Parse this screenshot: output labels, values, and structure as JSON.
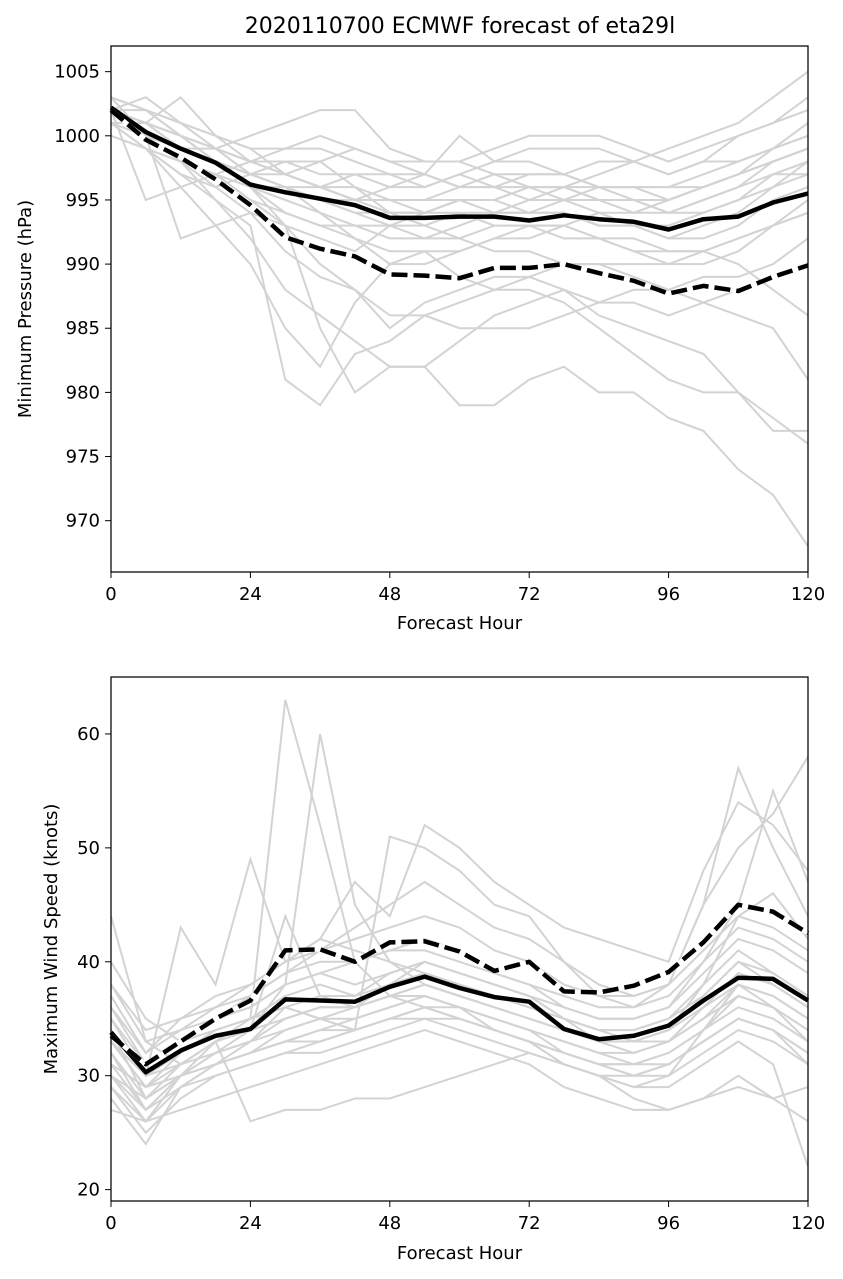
{
  "title": "2020110700 ECMWF forecast of eta29l",
  "chart_data": [
    {
      "type": "line",
      "xlabel": "Forecast Hour",
      "ylabel": "Minimum Pressure (hPa)",
      "xlim": [
        0,
        120
      ],
      "ylim": [
        966,
        1007
      ],
      "xticks": [
        0,
        24,
        48,
        72,
        96,
        120
      ],
      "yticks": [
        970,
        975,
        980,
        985,
        990,
        995,
        1000,
        1005
      ],
      "x": [
        0,
        6,
        12,
        18,
        24,
        30,
        36,
        42,
        48,
        54,
        60,
        66,
        72,
        78,
        84,
        90,
        96,
        102,
        108,
        114,
        120
      ],
      "series": [
        {
          "style": "solid",
          "values": [
            1002.2,
            1000.3,
            999.0,
            997.9,
            996.2,
            995.6,
            995.1,
            994.6,
            993.6,
            993.6,
            993.7,
            993.7,
            993.4,
            993.8,
            993.5,
            993.3,
            992.7,
            993.5,
            993.7,
            994.8,
            995.5
          ]
        },
        {
          "style": "dashed",
          "values": [
            1002.0,
            999.7,
            998.3,
            996.6,
            994.6,
            992.1,
            991.2,
            990.6,
            989.2,
            989.1,
            988.9,
            989.7,
            989.7,
            990.0,
            989.3,
            988.7,
            987.7,
            988.3,
            987.9,
            989.0,
            989.9
          ]
        }
      ],
      "members": [
        [
          1003,
          1002,
          1000,
          998,
          996,
          993,
          985,
          980,
          982,
          982,
          979,
          979,
          981,
          982,
          980,
          980,
          978,
          977,
          974,
          972,
          968
        ],
        [
          1002,
          1003,
          1001,
          999,
          997,
          996,
          994,
          992,
          990,
          990,
          991,
          992,
          993,
          993,
          992,
          992,
          991,
          991,
          990,
          988,
          986
        ],
        [
          1001,
          1000,
          998,
          995,
          992,
          988,
          986,
          984,
          982,
          982,
          984,
          986,
          987,
          988,
          986,
          985,
          984,
          983,
          980,
          978,
          976
        ],
        [
          1002,
          1001,
          1003,
          1000,
          998,
          997,
          998,
          999,
          998,
          997,
          996,
          996,
          997,
          997,
          998,
          998,
          999,
          1000,
          1001,
          1003,
          1005
        ],
        [
          1001,
          999,
          996,
          993,
          990,
          985,
          982,
          987,
          990,
          991,
          989,
          988,
          989,
          990,
          990,
          989,
          988,
          987,
          986,
          985,
          981
        ],
        [
          1000,
          999,
          997,
          995,
          993,
          981,
          979,
          983,
          984,
          986,
          987,
          988,
          988,
          987,
          985,
          983,
          981,
          980,
          980,
          977,
          977
        ],
        [
          1002,
          1000,
          998,
          996,
          994,
          991,
          989,
          988,
          986,
          986,
          985,
          985,
          985,
          986,
          987,
          988,
          988,
          989,
          989,
          990,
          992
        ],
        [
          1001,
          1000,
          992,
          993,
          994,
          993,
          992,
          991,
          993,
          994,
          995,
          994,
          995,
          996,
          995,
          995,
          995,
          996,
          997,
          998,
          999
        ],
        [
          1003,
          1000,
          999,
          999,
          1000,
          1001,
          1002,
          1002,
          999,
          998,
          998,
          999,
          1000,
          1000,
          1000,
          999,
          998,
          999,
          1000,
          1001,
          1002
        ],
        [
          1002,
          995,
          996,
          997,
          998,
          999,
          999,
          998,
          997,
          996,
          997,
          996,
          995,
          995,
          996,
          996,
          995,
          996,
          997,
          998,
          999
        ],
        [
          1001,
          1001,
          1000,
          999,
          997,
          996,
          995,
          994,
          994,
          993,
          992,
          991,
          991,
          990,
          990,
          990,
          990,
          990,
          991,
          993,
          995
        ],
        [
          1002,
          1002,
          1001,
          1000,
          999,
          999,
          1000,
          999,
          998,
          998,
          998,
          997,
          996,
          996,
          997,
          998,
          997,
          998,
          998,
          999,
          1000
        ],
        [
          1001,
          1001,
          999,
          998,
          996,
          995,
          994,
          993,
          992,
          992,
          993,
          994,
          994,
          995,
          994,
          993,
          992,
          992,
          993,
          995,
          996
        ],
        [
          1002,
          1001,
          1000,
          999,
          998,
          998,
          997,
          997,
          996,
          996,
          997,
          998,
          998,
          997,
          996,
          996,
          996,
          997,
          998,
          999,
          1000
        ],
        [
          1003,
          1002,
          1001,
          1000,
          999,
          997,
          996,
          995,
          996,
          997,
          1000,
          998,
          999,
          999,
          999,
          998,
          997,
          998,
          1000,
          1001,
          1003
        ],
        [
          1001,
          999,
          997,
          996,
          997,
          998,
          998,
          996,
          994,
          994,
          995,
          995,
          994,
          994,
          993,
          993,
          993,
          994,
          995,
          997,
          998
        ],
        [
          1002,
          1001,
          1000,
          998,
          996,
          994,
          993,
          992,
          991,
          991,
          991,
          992,
          992,
          993,
          992,
          991,
          991,
          991,
          992,
          993,
          994
        ],
        [
          1000,
          999,
          998,
          997,
          995,
          993,
          990,
          988,
          985,
          987,
          988,
          989,
          989,
          988,
          987,
          987,
          986,
          987,
          988,
          989,
          990
        ],
        [
          1002,
          1000,
          998,
          997,
          996,
          996,
          995,
          995,
          995,
          994,
          995,
          995,
          996,
          996,
          996,
          995,
          994,
          995,
          996,
          997,
          997
        ],
        [
          1001,
          1001,
          1000,
          998,
          997,
          996,
          996,
          997,
          997,
          997,
          996,
          996,
          996,
          995,
          995,
          994,
          994,
          995,
          996,
          998,
          999
        ],
        [
          1002,
          1001,
          999,
          998,
          997,
          996,
          995,
          994,
          993,
          993,
          994,
          994,
          994,
          994,
          993,
          993,
          992,
          993,
          994,
          996,
          997
        ],
        [
          1002,
          1000,
          999,
          998,
          997,
          997,
          996,
          995,
          994,
          994,
          994,
          993,
          993,
          993,
          994,
          994,
          995,
          996,
          997,
          999,
          1001
        ],
        [
          1003,
          1002,
          1000,
          999,
          998,
          997,
          996,
          995,
          995,
          995,
          996,
          997,
          997,
          997,
          996,
          996,
          996,
          996,
          997,
          998,
          999
        ],
        [
          1001,
          1000,
          998,
          997,
          995,
          994,
          993,
          993,
          993,
          992,
          992,
          993,
          993,
          992,
          992,
          991,
          990,
          991,
          992,
          993,
          994
        ],
        [
          1002,
          1001,
          1000,
          999,
          998,
          997,
          996,
          996,
          995,
          995,
          995,
          995,
          996,
          996,
          995,
          995,
          994,
          994,
          995,
          996,
          998
        ]
      ]
    },
    {
      "type": "line",
      "xlabel": "Forecast Hour",
      "ylabel": "Maximum Wind Speed (knots)",
      "xlim": [
        0,
        120
      ],
      "ylim": [
        19,
        65
      ],
      "xticks": [
        0,
        24,
        48,
        72,
        96,
        120
      ],
      "yticks": [
        20,
        30,
        40,
        50,
        60
      ],
      "x": [
        0,
        6,
        12,
        18,
        24,
        30,
        36,
        42,
        48,
        54,
        60,
        66,
        72,
        78,
        84,
        90,
        96,
        102,
        108,
        114,
        120
      ],
      "series": [
        {
          "style": "solid",
          "values": [
            33.8,
            30.3,
            32.2,
            33.5,
            34.1,
            36.7,
            36.6,
            36.5,
            37.8,
            38.7,
            37.7,
            36.9,
            36.5,
            34.1,
            33.2,
            33.5,
            34.4,
            36.6,
            38.6,
            38.5,
            36.6
          ]
        },
        {
          "style": "dashed",
          "values": [
            33.5,
            31.0,
            33.0,
            35.0,
            36.6,
            41.0,
            41.1,
            40.0,
            41.7,
            41.8,
            40.9,
            39.2,
            40.0,
            37.4,
            37.3,
            37.9,
            39.1,
            41.7,
            45.0,
            44.4,
            42.5
          ]
        }
      ],
      "members": [
        [
          44,
          33,
          31,
          33,
          35,
          63,
          52,
          40,
          37,
          36,
          35,
          34,
          33,
          31,
          30,
          29,
          30,
          34,
          38,
          36,
          33
        ],
        [
          30,
          26,
          30,
          32,
          34,
          38,
          60,
          45,
          40,
          38,
          37,
          36,
          35,
          34,
          33,
          33,
          34,
          38,
          41,
          39,
          37
        ],
        [
          28,
          24,
          29,
          31,
          33,
          36,
          35,
          34,
          51,
          50,
          48,
          45,
          44,
          40,
          37,
          36,
          38,
          45,
          57,
          50,
          44
        ],
        [
          35,
          30,
          43,
          38,
          49,
          40,
          42,
          47,
          44,
          52,
          50,
          47,
          45,
          43,
          42,
          41,
          40,
          48,
          54,
          52,
          48
        ],
        [
          32,
          27,
          30,
          33,
          26,
          27,
          27,
          28,
          28,
          29,
          30,
          31,
          32,
          31,
          30,
          28,
          27,
          28,
          29,
          28,
          29
        ],
        [
          40,
          35,
          33,
          35,
          37,
          39,
          41,
          43,
          45,
          47,
          45,
          43,
          42,
          40,
          38,
          37,
          38,
          45,
          50,
          53,
          58
        ],
        [
          31,
          29,
          30,
          31,
          32,
          33,
          34,
          35,
          36,
          37,
          36,
          34,
          33,
          31,
          30,
          29,
          29,
          31,
          33,
          31,
          22
        ],
        [
          36,
          32,
          34,
          36,
          38,
          40,
          42,
          41,
          40,
          39,
          38,
          37,
          36,
          35,
          34,
          34,
          35,
          38,
          44,
          46,
          42
        ],
        [
          29,
          25,
          28,
          30,
          31,
          32,
          32,
          33,
          34,
          35,
          35,
          34,
          33,
          32,
          31,
          30,
          30,
          32,
          34,
          33,
          31
        ],
        [
          34,
          28,
          31,
          33,
          34,
          44,
          37,
          36,
          38,
          40,
          39,
          38,
          37,
          35,
          34,
          33,
          33,
          35,
          38,
          37,
          35
        ],
        [
          38,
          33,
          34,
          35,
          36,
          38,
          39,
          40,
          41,
          42,
          41,
          39,
          38,
          36,
          35,
          35,
          36,
          40,
          45,
          55,
          47
        ],
        [
          27,
          26,
          27,
          28,
          29,
          30,
          31,
          32,
          33,
          34,
          33,
          32,
          31,
          29,
          28,
          27,
          27,
          28,
          30,
          28,
          26
        ],
        [
          33,
          29,
          32,
          34,
          35,
          37,
          38,
          37,
          39,
          40,
          39,
          38,
          37,
          35,
          33,
          33,
          34,
          37,
          40,
          38,
          36
        ],
        [
          35,
          31,
          33,
          34,
          35,
          36,
          35,
          34,
          35,
          36,
          36,
          35,
          34,
          33,
          32,
          32,
          33,
          35,
          37,
          36,
          34
        ],
        [
          30,
          27,
          29,
          30,
          31,
          32,
          33,
          34,
          35,
          36,
          35,
          34,
          33,
          32,
          31,
          31,
          32,
          34,
          36,
          35,
          33
        ],
        [
          37,
          32,
          35,
          37,
          38,
          40,
          41,
          42,
          43,
          44,
          43,
          41,
          40,
          38,
          37,
          37,
          38,
          41,
          44,
          43,
          41
        ],
        [
          32,
          28,
          30,
          31,
          32,
          34,
          35,
          35,
          36,
          37,
          36,
          35,
          34,
          33,
          32,
          31,
          32,
          34,
          37,
          36,
          34
        ],
        [
          36,
          31,
          33,
          35,
          36,
          38,
          39,
          38,
          39,
          40,
          39,
          38,
          37,
          36,
          35,
          35,
          36,
          39,
          42,
          41,
          39
        ],
        [
          33,
          30,
          31,
          32,
          33,
          35,
          36,
          36,
          37,
          38,
          37,
          36,
          35,
          34,
          33,
          32,
          33,
          36,
          39,
          38,
          36
        ],
        [
          31,
          27,
          30,
          32,
          33,
          34,
          35,
          36,
          37,
          37,
          36,
          35,
          34,
          32,
          31,
          31,
          31,
          33,
          35,
          34,
          32
        ],
        [
          34,
          30,
          32,
          34,
          35,
          36,
          37,
          37,
          38,
          39,
          38,
          37,
          36,
          35,
          34,
          34,
          35,
          37,
          40,
          39,
          37
        ],
        [
          29,
          26,
          29,
          31,
          32,
          33,
          34,
          34,
          35,
          36,
          35,
          34,
          33,
          32,
          31,
          30,
          31,
          33,
          35,
          34,
          32
        ],
        [
          38,
          34,
          35,
          36,
          37,
          39,
          40,
          40,
          41,
          41,
          40,
          39,
          38,
          37,
          36,
          36,
          37,
          40,
          43,
          42,
          40
        ],
        [
          33,
          29,
          31,
          33,
          34,
          35,
          36,
          36,
          37,
          38,
          37,
          36,
          35,
          34,
          33,
          33,
          34,
          36,
          38,
          37,
          35
        ],
        [
          30,
          28,
          30,
          31,
          32,
          33,
          33,
          34,
          35,
          35,
          34,
          33,
          32,
          31,
          30,
          30,
          31,
          33,
          35,
          34,
          31
        ]
      ]
    }
  ]
}
